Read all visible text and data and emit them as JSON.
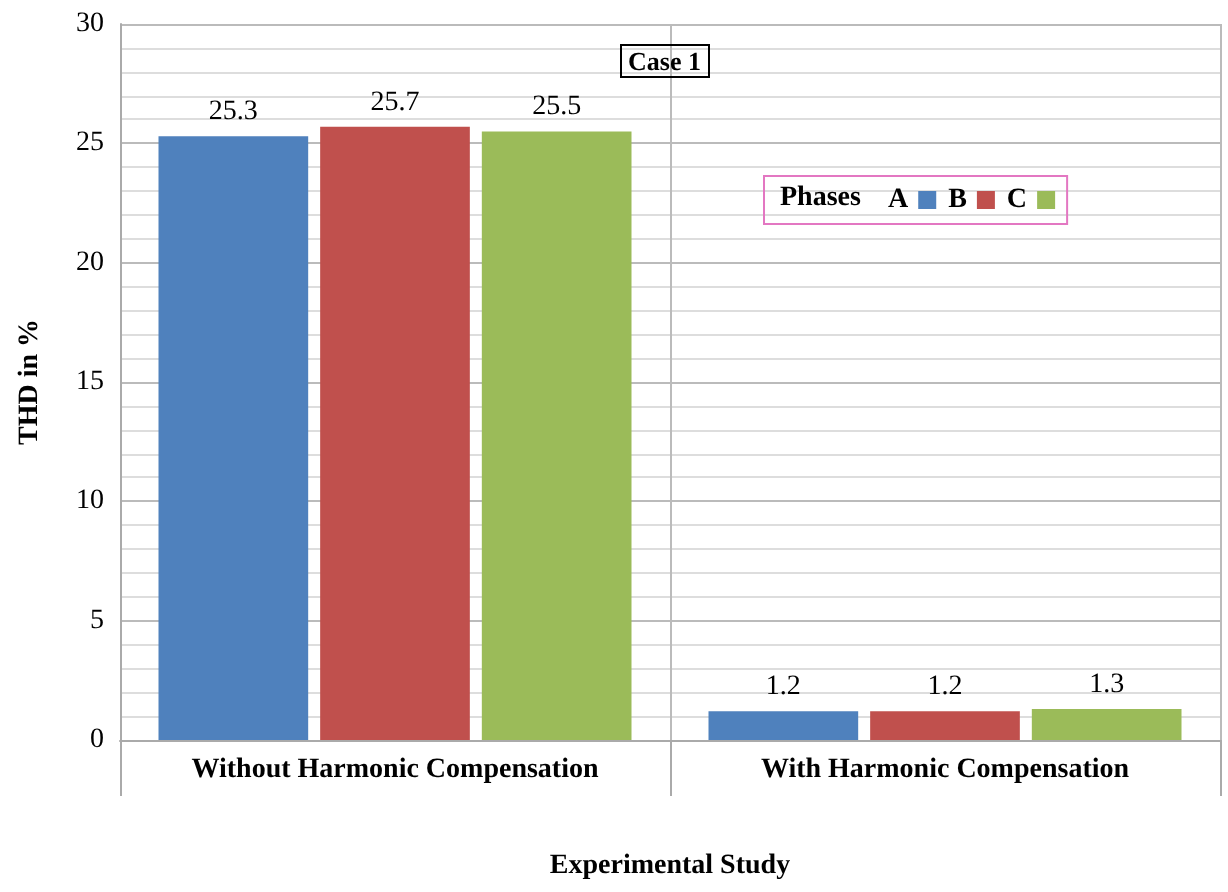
{
  "chart_data": {
    "type": "bar",
    "title": "Case 1",
    "xlabel": "Experimental Study",
    "ylabel": "THD in %",
    "legend_title": "Phases",
    "categories": [
      "Without Harmonic Compensation",
      "With Harmonic Compensation"
    ],
    "series": [
      {
        "name": "A",
        "color": "#4f81bd",
        "values": [
          25.3,
          1.2
        ]
      },
      {
        "name": "B",
        "color": "#c0504d",
        "values": [
          25.7,
          1.2
        ]
      },
      {
        "name": "C",
        "color": "#9bbb59",
        "values": [
          25.5,
          1.3
        ]
      }
    ],
    "ylim": [
      0,
      30
    ],
    "yticks": [
      0,
      5,
      10,
      15,
      20,
      25,
      30
    ],
    "grid": true,
    "legend": "top right",
    "data_labels": true
  }
}
